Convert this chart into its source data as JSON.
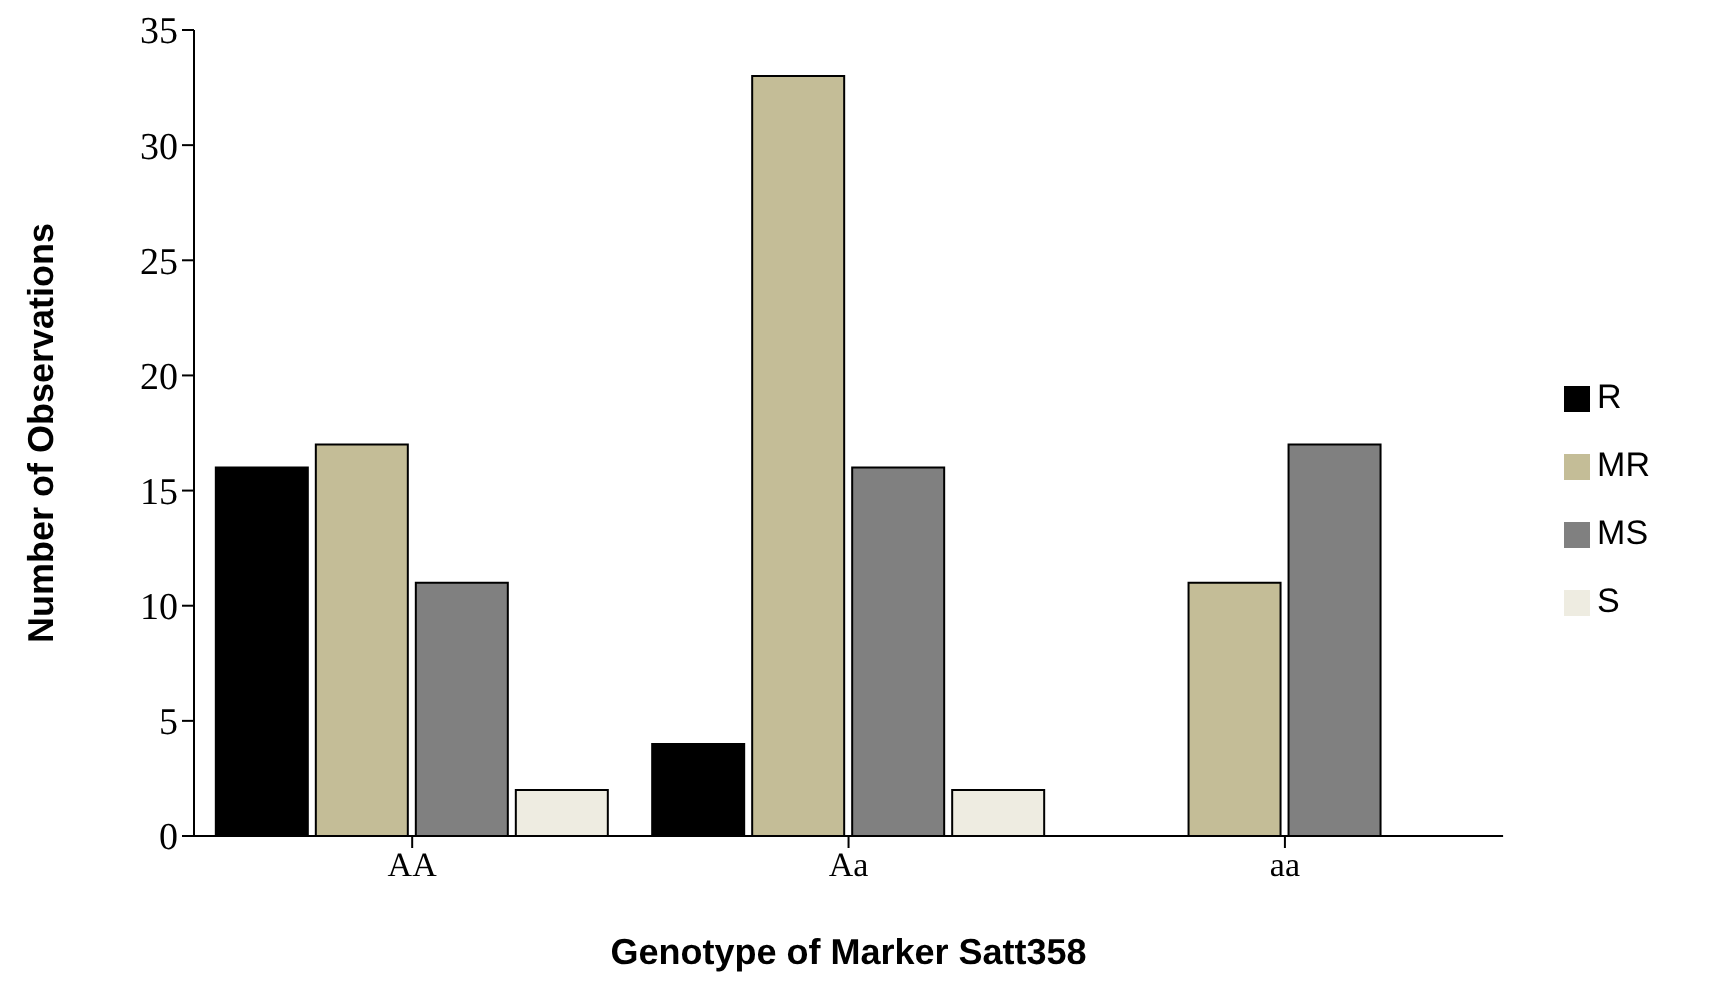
{
  "chart_data": {
    "type": "bar",
    "xlabel": "Genotype of Marker Satt358",
    "ylabel": "Number of Observations",
    "categories": [
      "AA",
      "Aa",
      "aa"
    ],
    "series": [
      {
        "name": "R",
        "color": "#000000",
        "values": [
          16,
          4,
          0
        ]
      },
      {
        "name": "MR",
        "color": "#c4bd97",
        "values": [
          17,
          33,
          11
        ]
      },
      {
        "name": "MS",
        "color": "#808080",
        "values": [
          11,
          16,
          17
        ]
      },
      {
        "name": "S",
        "color": "#eeece1",
        "values": [
          2,
          2,
          0
        ]
      }
    ],
    "ylim": [
      0,
      35
    ],
    "yticks": [
      0,
      5,
      10,
      15,
      20,
      25,
      30,
      35
    ],
    "grid": false,
    "legend": "right"
  }
}
